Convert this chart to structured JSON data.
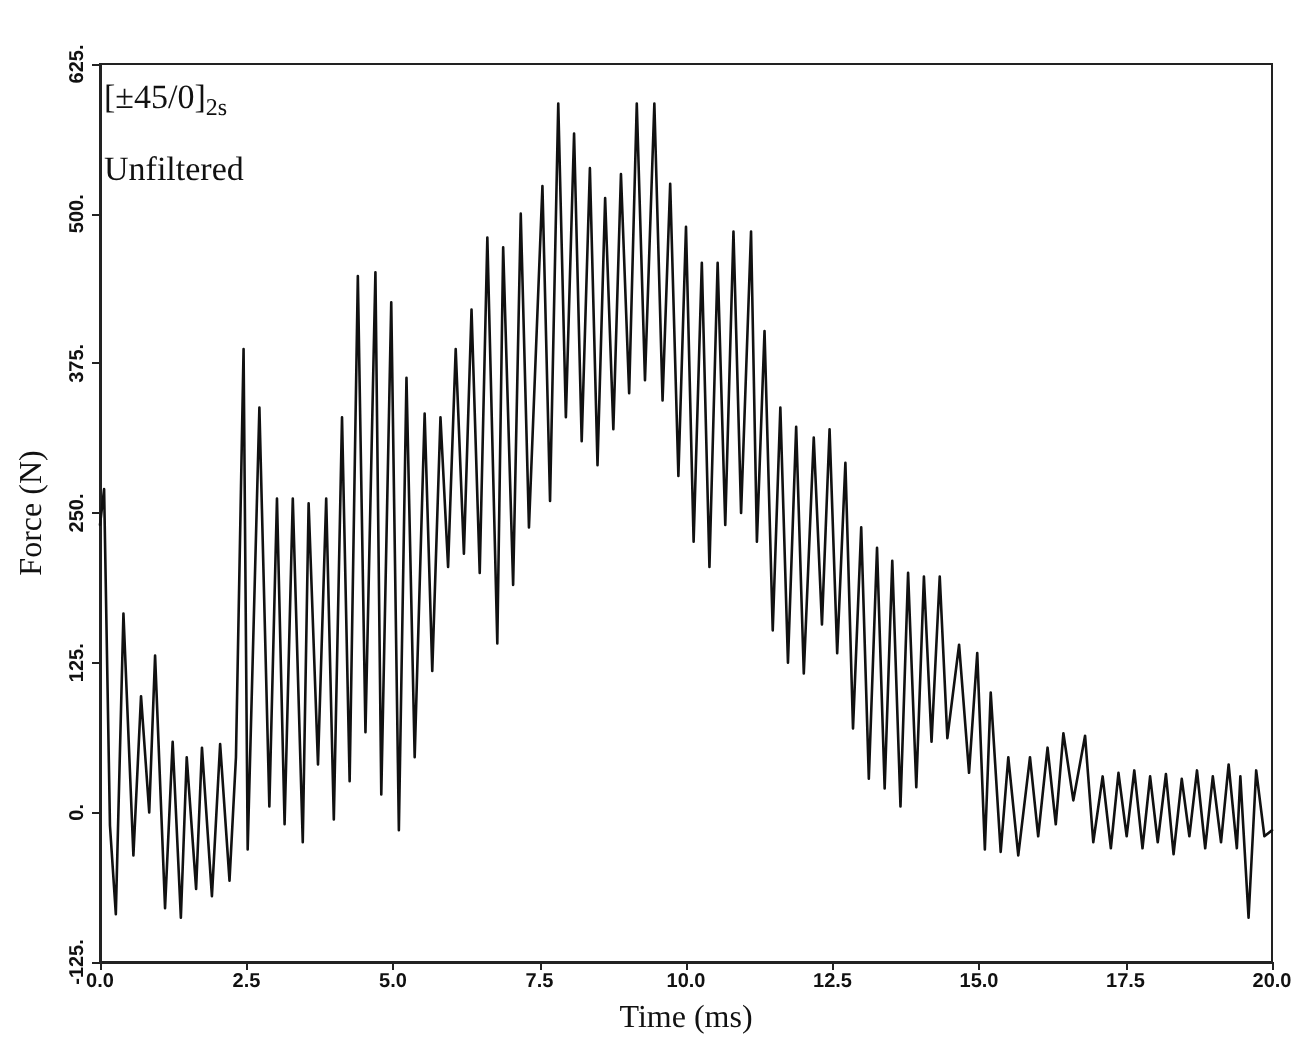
{
  "chart_data": {
    "type": "line",
    "xlabel": "Time (ms)",
    "ylabel": "Force (N)",
    "annotations": [
      "[±45/0]$_{2s}$",
      "Unfiltered"
    ],
    "xlim": [
      0,
      20
    ],
    "ylim": [
      -125,
      625
    ],
    "xticks": [
      {
        "value": 0,
        "label": "0.0"
      },
      {
        "value": 2.5,
        "label": "2.5"
      },
      {
        "value": 5,
        "label": "5.0"
      },
      {
        "value": 7.5,
        "label": "7.5"
      },
      {
        "value": 10,
        "label": "10.0"
      },
      {
        "value": 12.5,
        "label": "12.5"
      },
      {
        "value": 15,
        "label": "15.0"
      },
      {
        "value": 17.5,
        "label": "17.5"
      },
      {
        "value": 20,
        "label": "20.0"
      }
    ],
    "yticks": [
      {
        "value": -125,
        "label": "-125."
      },
      {
        "value": 0,
        "label": "0."
      },
      {
        "value": 125,
        "label": "125."
      },
      {
        "value": 250,
        "label": "250."
      },
      {
        "value": 375,
        "label": "375."
      },
      {
        "value": 500,
        "label": "500."
      },
      {
        "value": 625,
        "label": "625."
      }
    ],
    "grid": false,
    "marker": "none",
    "line_style": "solid",
    "series": [
      {
        "color": "#111111",
        "x": [
          0,
          0.07,
          0.17,
          0.27,
          0.4,
          0.57,
          0.7,
          0.84,
          0.94,
          1.11,
          1.24,
          1.38,
          1.48,
          1.64,
          1.74,
          1.91,
          2.05,
          2.21,
          2.32,
          2.45,
          2.52,
          2.72,
          2.89,
          3.02,
          3.15,
          3.29,
          3.46,
          3.56,
          3.72,
          3.86,
          3.99,
          4.13,
          4.26,
          4.4,
          4.53,
          4.7,
          4.8,
          4.97,
          5.1,
          5.23,
          5.37,
          5.54,
          5.67,
          5.81,
          5.94,
          6.07,
          6.21,
          6.34,
          6.48,
          6.61,
          6.78,
          6.88,
          7.05,
          7.18,
          7.32,
          7.55,
          7.68,
          7.82,
          7.95,
          8.09,
          8.22,
          8.36,
          8.49,
          8.62,
          8.76,
          8.89,
          9.03,
          9.16,
          9.3,
          9.46,
          9.6,
          9.73,
          9.87,
          10,
          10.13,
          10.27,
          10.4,
          10.54,
          10.67,
          10.81,
          10.94,
          11.11,
          11.21,
          11.34,
          11.48,
          11.61,
          11.74,
          11.88,
          12.01,
          12.18,
          12.32,
          12.45,
          12.58,
          12.72,
          12.85,
          12.99,
          13.12,
          13.26,
          13.39,
          13.52,
          13.66,
          13.79,
          13.93,
          14.06,
          14.19,
          14.33,
          14.46,
          14.66,
          14.83,
          14.97,
          15.1,
          15.2,
          15.37,
          15.5,
          15.67,
          15.87,
          16.01,
          16.17,
          16.31,
          16.44,
          16.61,
          16.81,
          16.95,
          17.11,
          17.25,
          17.38,
          17.52,
          17.65,
          17.79,
          17.92,
          18.05,
          18.19,
          18.32,
          18.46,
          18.59,
          18.72,
          18.86,
          18.99,
          19.13,
          19.26,
          19.4,
          19.46,
          19.6,
          19.73,
          19.87,
          20
        ],
        "values": [
          240,
          270,
          -11,
          -85,
          166,
          -36,
          97,
          0,
          131,
          -80,
          59,
          -88,
          46,
          -64,
          54,
          -70,
          57,
          -57,
          46,
          387,
          -31,
          338,
          5,
          262,
          -10,
          262,
          -25,
          258,
          40,
          262,
          -6,
          330,
          26,
          448,
          67,
          451,
          15,
          426,
          -15,
          363,
          46,
          333,
          118,
          330,
          205,
          387,
          216,
          420,
          200,
          480,
          141,
          472,
          190,
          500,
          238,
          523,
          260,
          592,
          330,
          567,
          310,
          538,
          290,
          513,
          320,
          533,
          350,
          592,
          361,
          592,
          344,
          525,
          281,
          489,
          226,
          459,
          205,
          459,
          240,
          485,
          250,
          485,
          226,
          402,
          152,
          338,
          125,
          322,
          116,
          313,
          157,
          320,
          133,
          292,
          70,
          238,
          28,
          221,
          20,
          210,
          5,
          200,
          21,
          197,
          59,
          197,
          62,
          140,
          33,
          133,
          -31,
          100,
          -33,
          46,
          -36,
          46,
          -20,
          54,
          -10,
          66,
          10,
          64,
          -25,
          30,
          -30,
          33,
          -20,
          35,
          -30,
          30,
          -25,
          32,
          -35,
          28,
          -20,
          35,
          -30,
          30,
          -25,
          40,
          -30,
          30,
          -88,
          35,
          -20,
          -15
        ]
      }
    ]
  }
}
